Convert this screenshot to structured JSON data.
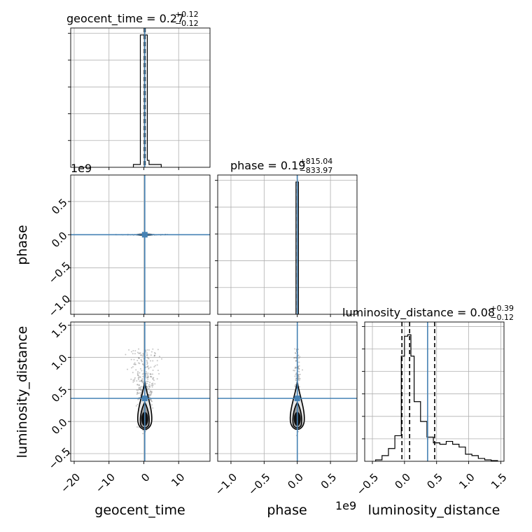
{
  "chart_data": {
    "type": "corner",
    "parameters": [
      "geocent_time",
      "phase",
      "luminosity_distance"
    ],
    "injection_color": "#4682b4",
    "hist_color": "#000000",
    "sample_color": "#808080",
    "grid": true,
    "titles": {
      "geocent_time": {
        "prefix": "geocent_time = ",
        "value": "0.27",
        "plus": "+0.12",
        "minus": "−0.12"
      },
      "phase": {
        "prefix": "phase = ",
        "value": "0.19",
        "plus": "+815.04",
        "minus": "−833.97"
      },
      "luminosity_distance": {
        "prefix": "luminosity_distance = ",
        "value": "0.08",
        "plus": "+0.39",
        "minus": "−0.12"
      }
    },
    "axis_labels": {
      "x": [
        "geocent_time",
        "phase",
        "luminosity_distance"
      ],
      "y": [
        "phase",
        "luminosity_distance"
      ]
    },
    "offset_labels": {
      "phase_y": "1e9",
      "phase_x": "1e9"
    },
    "ticks": {
      "geocent_time": {
        "values": [
          -20,
          -10,
          0,
          10
        ],
        "labels": [
          "−20",
          "−10",
          "0",
          "10"
        ]
      },
      "phase": {
        "values": [
          -1.0,
          -0.5,
          0.0,
          0.5
        ],
        "labels": [
          "−1.0",
          "−0.5",
          "0.0",
          "0.5"
        ]
      },
      "phase_y": {
        "values": [
          0.5,
          0.0,
          -0.5,
          -1.0
        ],
        "labels": [
          "0.5",
          "0.0",
          "−0.5",
          "−1.0"
        ]
      },
      "luminosity_distance_y": {
        "values": [
          1.5,
          1.0,
          0.5,
          0.0,
          -0.5
        ],
        "labels": [
          "1.5",
          "1.0",
          "0.5",
          "0.0",
          "−0.5"
        ]
      },
      "luminosity_distance_x": {
        "values": [
          -0.5,
          0.0,
          0.5,
          1.0,
          1.5
        ],
        "labels": [
          "−0.5",
          "0.0",
          "0.5",
          "1.0",
          "1.5"
        ]
      }
    },
    "ranges": {
      "geocent_time": [
        -21,
        19
      ],
      "phase": [
        -1.2,
        0.9
      ],
      "luminosity_distance": [
        -0.62,
        1.55
      ]
    },
    "injection": {
      "geocent_time": 0.27,
      "phase": 0.0,
      "luminosity_distance": 0.36
    },
    "quantiles": {
      "geocent_time": [
        0.15,
        0.27,
        0.39
      ],
      "phase": [
        -0.000834,
        0.0,
        0.000815
      ],
      "luminosity_distance": [
        -0.04,
        0.08,
        0.47
      ]
    },
    "histograms": {
      "geocent_time": {
        "edges": [
          -3,
          -1,
          0,
          1.0,
          1.5,
          5
        ],
        "counts": [
          0.02,
          0.95,
          0.95,
          0.05,
          0.02
        ]
      },
      "phase": {
        "edges": [
          -0.02,
          0.0,
          0.018
        ],
        "counts": [
          0.95,
          0.95
        ]
      },
      "luminosity_distance": {
        "edges": [
          -0.45,
          -0.35,
          -0.25,
          -0.15,
          -0.05,
          0.0,
          0.05,
          0.1,
          0.15,
          0.25,
          0.35,
          0.45,
          0.55,
          0.65,
          0.75,
          0.85,
          0.95,
          1.05,
          1.15,
          1.25,
          1.35,
          1.45
        ],
        "counts": [
          0.01,
          0.04,
          0.09,
          0.18,
          0.74,
          0.88,
          0.89,
          0.74,
          0.42,
          0.28,
          0.17,
          0.13,
          0.12,
          0.14,
          0.12,
          0.1,
          0.05,
          0.04,
          0.02,
          0.01,
          0.005
        ]
      }
    }
  }
}
